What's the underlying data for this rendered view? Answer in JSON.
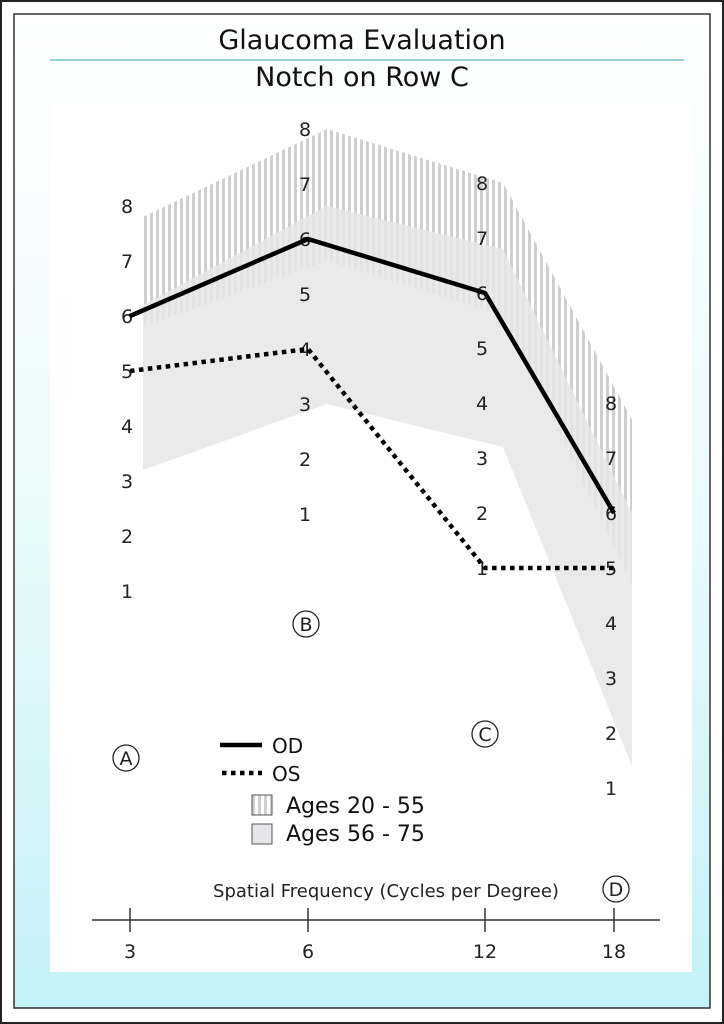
{
  "chart_data": {
    "type": "line",
    "title": "Glaucoma Evaluation",
    "subtitle": "Notch on Row C",
    "xlabel": "Spatial Frequency (Cycles per Degree)",
    "x": [
      3,
      6,
      12,
      18
    ],
    "x_tick_labels": [
      "3",
      "6",
      "12",
      "18"
    ],
    "columns": [
      {
        "letter": "A",
        "x": 3,
        "scale": [
          "1",
          "2",
          "3",
          "4",
          "5",
          "6",
          "7",
          "8"
        ]
      },
      {
        "letter": "B",
        "x": 6,
        "scale": [
          "1",
          "2",
          "3",
          "4",
          "5",
          "6",
          "7",
          "8"
        ]
      },
      {
        "letter": "C",
        "x": 12,
        "scale": [
          "1",
          "2",
          "3",
          "4",
          "5",
          "6",
          "7",
          "8"
        ]
      },
      {
        "letter": "D",
        "x": 18,
        "scale": [
          "1",
          "2",
          "3",
          "4",
          "5",
          "6",
          "7",
          "8"
        ]
      }
    ],
    "series": [
      {
        "name": "OD",
        "style": "solid",
        "values": [
          6,
          6,
          6,
          6
        ]
      },
      {
        "name": "OS",
        "style": "dotted",
        "values": [
          5,
          4,
          1,
          5
        ]
      }
    ],
    "bands": [
      {
        "name": "Ages 20 - 55",
        "pattern": "vertical-stripes",
        "upper": [
          7.8,
          8.0,
          8.0,
          7.7
        ],
        "lower": [
          5.8,
          5.6,
          5.6,
          4.7
        ]
      },
      {
        "name": "Ages 56 - 75",
        "pattern": "solid-gray",
        "upper": [
          6.2,
          6.6,
          6.8,
          6.0
        ],
        "lower": [
          3.2,
          3.0,
          3.2,
          1.4
        ]
      }
    ],
    "legend_position": "lower-left",
    "grid": false
  },
  "colors": {
    "outer_background": "#c9f3f7",
    "chart_background": "#ffffff",
    "line": "#000000",
    "band_gray": "#e6e6e8",
    "stripe": "#cfcfd2",
    "title_rule": "#4fb6c4"
  }
}
